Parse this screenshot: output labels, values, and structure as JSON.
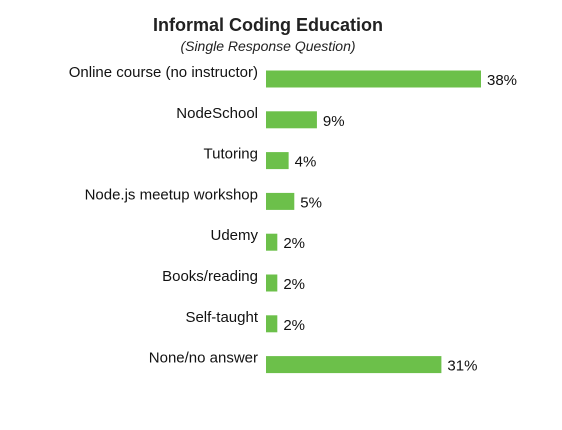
{
  "chart_data": {
    "type": "bar",
    "orientation": "horizontal",
    "title": "Informal Coding Education",
    "subtitle": "(Single Response Question)",
    "categories": [
      "Online course (no instructor)",
      "NodeSchool",
      "Tutoring",
      "Node.js meetup workshop",
      "Udemy",
      "Books/reading",
      "Self-taught",
      "None/no answer"
    ],
    "values": [
      38,
      9,
      4,
      5,
      2,
      2,
      2,
      31
    ],
    "value_labels": [
      "38%",
      "9%",
      "4%",
      "5%",
      "2%",
      "2%",
      "2%",
      "31%"
    ],
    "unit": "%",
    "xlim": [
      0,
      40
    ],
    "grid": false,
    "legend": "none",
    "bar_color": "#6cc04a"
  }
}
